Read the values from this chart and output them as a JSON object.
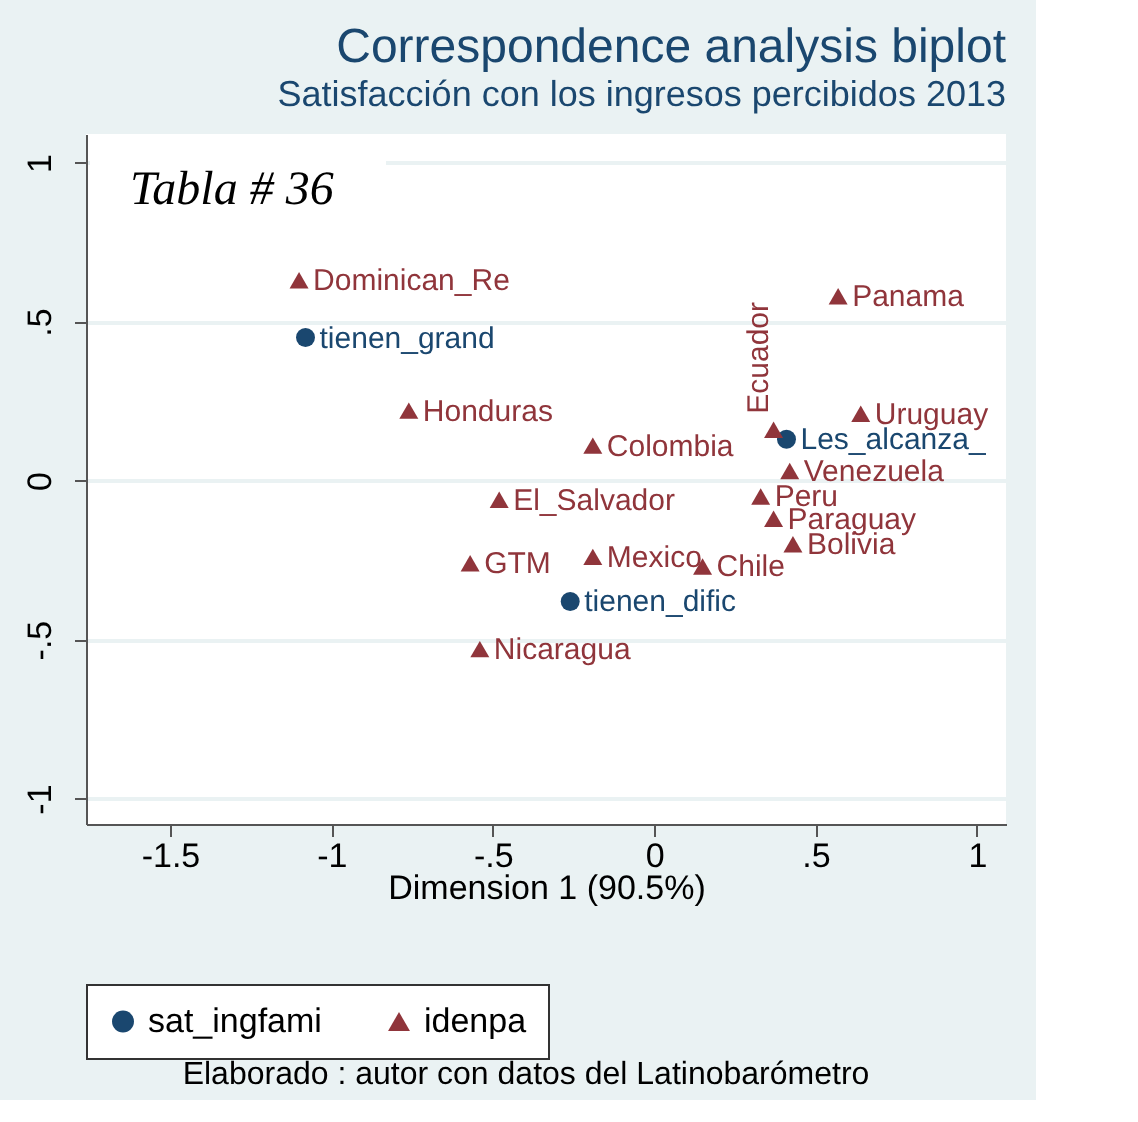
{
  "chart_data": {
    "type": "scatter",
    "title": "Correspondence analysis biplot",
    "subtitle": "Satisfacción con los ingresos percibidos 2013",
    "xlabel": "Dimension 1 (90.5%)",
    "series": [
      {
        "name": "sat_ingfami",
        "color": "#1a476f",
        "marker": "circle",
        "x": [
          -1.08,
          0.41,
          -0.26
        ],
        "values": [
          0.45,
          0.13,
          -0.38
        ]
      },
      {
        "name": "idenpa",
        "color": "#90353b",
        "marker": "triangle",
        "x": [
          -1.1,
          0.57,
          -0.76,
          -0.19,
          0.64,
          0.37,
          0.42,
          -0.48,
          0.33,
          0.37,
          0.43,
          -0.57,
          -0.19,
          0.15,
          -0.54
        ],
        "values": [
          0.63,
          0.58,
          0.22,
          0.11,
          0.21,
          0.16,
          0.03,
          -0.06,
          -0.05,
          -0.12,
          -0.2,
          -0.26,
          -0.24,
          -0.27,
          -0.53
        ]
      }
    ],
    "annotations": [
      "Tabla # 36",
      {
        "text": "tienen_grand",
        "x": -1.08,
        "y": 0.45
      },
      {
        "text": "Les_alcanza_",
        "x": 0.41,
        "y": 0.13
      },
      {
        "text": "tienen_dific",
        "x": -0.26,
        "y": -0.38
      },
      {
        "text": "Dominican_Re",
        "x": -1.1,
        "y": 0.63
      },
      {
        "text": "Panama",
        "x": 0.57,
        "y": 0.58
      },
      {
        "text": "Honduras",
        "x": -0.76,
        "y": 0.22
      },
      {
        "text": "Colombia",
        "x": -0.19,
        "y": 0.11
      },
      {
        "text": "Uruguay",
        "x": 0.64,
        "y": 0.21
      },
      {
        "text": "Ecuador",
        "x": 0.37,
        "y": 0.16
      },
      {
        "text": "Venezuela",
        "x": 0.42,
        "y": 0.03
      },
      {
        "text": "El_Salvador",
        "x": -0.48,
        "y": -0.06
      },
      {
        "text": "Peru",
        "x": 0.33,
        "y": -0.05
      },
      {
        "text": "Paraguay",
        "x": 0.37,
        "y": -0.12
      },
      {
        "text": "Bolivia",
        "x": 0.43,
        "y": -0.2
      },
      {
        "text": "GTM",
        "x": -0.57,
        "y": -0.26
      },
      {
        "text": "Mexico",
        "x": -0.19,
        "y": -0.24
      },
      {
        "text": "Chile",
        "x": 0.15,
        "y": -0.27
      },
      {
        "text": "Nicaragua",
        "x": -0.54,
        "y": -0.53
      },
      "Elaborado : autor con datos del Latinobarómetro"
    ],
    "xlim": [
      -1.76,
      1.09
    ],
    "ylim": [
      -1.08,
      1.09
    ],
    "xticks": [
      -1.5,
      -1,
      {
        "value": -0.5,
        "label": "-.5"
      },
      0,
      {
        "value": 0.5,
        "label": ".5"
      },
      1
    ],
    "yticks": [
      {
        "value": -1,
        "label": "-1"
      },
      {
        "value": -0.5,
        "label": "-.5"
      },
      0,
      {
        "value": 0.5,
        "label": ".5"
      },
      1
    ],
    "grid": "y",
    "legend": "bottom"
  }
}
